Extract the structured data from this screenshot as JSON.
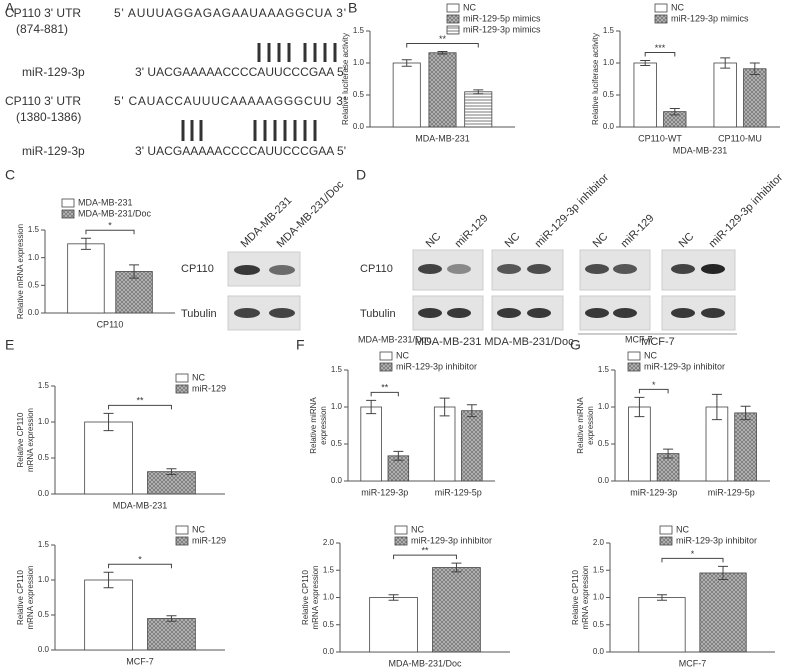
{
  "panel_labels": [
    "A",
    "B",
    "C",
    "D",
    "E",
    "F",
    "G"
  ],
  "sequences": [
    {
      "label": "CP110 3' UTR",
      "sublabel": "(874-881)",
      "seq": "5' AUUUAGGAGAGAAUAAAGGCUA 3'"
    },
    {
      "label": "miR-129-3p",
      "seq": "3' UACGAAAAACCCCAUUCCCGAA 5'"
    },
    {
      "label": "CP110 3' UTR",
      "sublabel": "(1380-1386)",
      "seq": "5' CAUACCAUUUCAAAAAGGGCUU 3'"
    },
    {
      "label": "miR-129-3p",
      "seq": "3' UACGAAAAACCCCAUUCCCGAA 5'"
    }
  ],
  "blot_c": {
    "lanes": [
      "MDA-MB-231",
      "MDA-MB-231/Doc"
    ],
    "rows": [
      "CP110",
      "Tubulin"
    ]
  },
  "blot_d": {
    "lanes": [
      "NC",
      "miR-129",
      "NC",
      "miR-129-3p inhibitor",
      "NC",
      "miR-129",
      "NC",
      "miR-129-3p inhibitor"
    ],
    "rows": [
      "CP110",
      "Tubulin"
    ],
    "groups": [
      "MDA-MB-231",
      "MDA-MB-231/Doc",
      "MCF-7"
    ]
  },
  "chart_data": [
    {
      "type": "bar",
      "ylabel": [
        "Relative luciferase activity"
      ],
      "categories": [
        "MDA-MB-231"
      ],
      "series": [
        {
          "name": "NC",
          "color": "#ffffff",
          "pattern": "none",
          "values": [
            1.0
          ],
          "errors": [
            0.05
          ]
        },
        {
          "name": "miR-129-5p mimics",
          "color": "#b8b8b8",
          "pattern": "crosshatch",
          "values": [
            1.16
          ],
          "errors": [
            0.02
          ]
        },
        {
          "name": "miR-129-3p mimics",
          "color": "#ffffff",
          "pattern": "hlines",
          "values": [
            0.55
          ],
          "errors": [
            0.03
          ]
        }
      ],
      "annotation": "**",
      "ylim": [
        0,
        1.5
      ],
      "yticks": [
        {
          "value": 0,
          "label": "0.0"
        },
        0.5,
        {
          "value": 1,
          "label": "1.0"
        },
        1.5
      ]
    },
    {
      "type": "bar",
      "ylabel": [
        "Relative luciferase activity"
      ],
      "categories": [
        "CP110-WT",
        "CP110-MU"
      ],
      "xlabel": "MDA-MB-231",
      "series": [
        {
          "name": "NC",
          "color": "#ffffff",
          "pattern": "none",
          "values": [
            1.0,
            1.0
          ],
          "errors": [
            0.04,
            0.08
          ]
        },
        {
          "name": "miR-129-3p  mimics",
          "color": "#b8b8b8",
          "pattern": "crosshatch",
          "values": [
            0.24,
            0.91
          ],
          "errors": [
            0.05,
            0.09
          ]
        }
      ],
      "annotation": "***",
      "ylim": [
        0,
        1.5
      ],
      "yticks": [
        {
          "value": 0,
          "label": "0.0"
        },
        0.5,
        {
          "value": 1,
          "label": "1.0"
        },
        1.5
      ]
    },
    {
      "type": "bar",
      "ylabel": [
        "Relative mRNA expression"
      ],
      "categories": [
        "CP110"
      ],
      "series": [
        {
          "name": "MDA-MB-231",
          "color": "#ffffff",
          "pattern": "none",
          "values": [
            1.25
          ],
          "errors": [
            0.1
          ]
        },
        {
          "name": "MDA-MB-231/Doc",
          "color": "#b8b8b8",
          "pattern": "crosshatch",
          "values": [
            0.75
          ],
          "errors": [
            0.12
          ]
        }
      ],
      "annotation": "*",
      "ylim": [
        0,
        1.5
      ],
      "yticks": [
        {
          "value": 0,
          "label": "0.0"
        },
        0.5,
        {
          "value": 1,
          "label": "1.0"
        },
        1.5
      ]
    },
    {
      "type": "bar",
      "ylabel": [
        "Relative CP110",
        "mRNA expression"
      ],
      "categories": [
        "MDA-MB-231"
      ],
      "series": [
        {
          "name": "NC",
          "color": "#ffffff",
          "pattern": "none",
          "values": [
            1.0
          ],
          "errors": [
            0.12
          ]
        },
        {
          "name": "miR-129",
          "color": "#b8b8b8",
          "pattern": "crosshatch",
          "values": [
            0.31
          ],
          "errors": [
            0.04
          ]
        }
      ],
      "annotation": "**",
      "ylim": [
        0,
        1.5
      ],
      "yticks": [
        {
          "value": 0,
          "label": "0.0"
        },
        0.5,
        {
          "value": 1,
          "label": "1.0"
        },
        1.5
      ]
    },
    {
      "type": "bar",
      "ylabel": [
        "Relative CP110",
        "mRNA expression"
      ],
      "categories": [
        "MCF-7"
      ],
      "series": [
        {
          "name": "NC",
          "color": "#ffffff",
          "pattern": "none",
          "values": [
            1.0
          ],
          "errors": [
            0.11
          ]
        },
        {
          "name": "miR-129",
          "color": "#b8b8b8",
          "pattern": "crosshatch",
          "values": [
            0.45
          ],
          "errors": [
            0.04
          ]
        }
      ],
      "annotation": "*",
      "ylim": [
        0,
        1.5
      ],
      "yticks": [
        {
          "value": 0,
          "label": "0.0"
        },
        0.5,
        {
          "value": 1,
          "label": "1.0"
        },
        1.5
      ]
    },
    {
      "type": "bar",
      "title": "MDA-MB-231/Doc",
      "ylabel": [
        "Relative miRNA",
        "expression"
      ],
      "categories": [
        "miR-129-3p",
        "miR-129-5p"
      ],
      "series": [
        {
          "name": "NC",
          "color": "#ffffff",
          "pattern": "none",
          "values": [
            1.0,
            1.0
          ],
          "errors": [
            0.09,
            0.12
          ]
        },
        {
          "name": "miR-129-3p inhibitor",
          "color": "#b8b8b8",
          "pattern": "crosshatch",
          "values": [
            0.34,
            0.95
          ],
          "errors": [
            0.06,
            0.08
          ]
        }
      ],
      "annotation": "**",
      "ylim": [
        0,
        1.5
      ],
      "yticks": [
        {
          "value": 0,
          "label": "0.0"
        },
        0.5,
        {
          "value": 1,
          "label": "1.0"
        },
        1.5
      ]
    },
    {
      "type": "bar",
      "ylabel": [
        "Relative CP110",
        "mRNA expression"
      ],
      "categories": [
        "MDA-MB-231/Doc"
      ],
      "series": [
        {
          "name": "NC",
          "color": "#ffffff",
          "pattern": "none",
          "values": [
            1.0
          ],
          "errors": [
            0.05
          ]
        },
        {
          "name": "miR-129-3p inhibitor",
          "color": "#b8b8b8",
          "pattern": "crosshatch",
          "values": [
            1.55
          ],
          "errors": [
            0.08
          ]
        }
      ],
      "annotation": "**",
      "ylim": [
        0,
        2
      ],
      "yticks": [
        {
          "value": 0,
          "label": "0.0"
        },
        0.5,
        {
          "value": 1,
          "label": "1.0"
        },
        1.5,
        {
          "value": 2,
          "label": "2.0"
        }
      ]
    },
    {
      "type": "bar",
      "title": "MCF-7",
      "ylabel": [
        "Relative miRNA",
        "expression"
      ],
      "categories": [
        "miR-129-3p",
        "miR-129-5p"
      ],
      "series": [
        {
          "name": "NC",
          "color": "#ffffff",
          "pattern": "none",
          "values": [
            1.0,
            1.0
          ],
          "errors": [
            0.13,
            0.17
          ]
        },
        {
          "name": "miR-129-3p inhibitor",
          "color": "#b8b8b8",
          "pattern": "crosshatch",
          "values": [
            0.37,
            0.92
          ],
          "errors": [
            0.06,
            0.09
          ]
        }
      ],
      "annotation": "*",
      "ylim": [
        0,
        1.5
      ],
      "yticks": [
        {
          "value": 0,
          "label": "0.0"
        },
        0.5,
        {
          "value": 1,
          "label": "1.0"
        },
        1.5
      ]
    },
    {
      "type": "bar",
      "ylabel": [
        "Relative CP110",
        "mRNA expression"
      ],
      "categories": [
        "MCF-7"
      ],
      "series": [
        {
          "name": "NC",
          "color": "#ffffff",
          "pattern": "none",
          "values": [
            1.0
          ],
          "errors": [
            0.05
          ]
        },
        {
          "name": "miR-129-3p inhibitor",
          "color": "#b8b8b8",
          "pattern": "crosshatch",
          "values": [
            1.45
          ],
          "errors": [
            0.12
          ]
        }
      ],
      "annotation": "*",
      "ylim": [
        0,
        2
      ],
      "yticks": [
        {
          "value": 0,
          "label": "0.0"
        },
        0.5,
        {
          "value": 1,
          "label": "1.0"
        },
        1.5,
        {
          "value": 2,
          "label": "2.0"
        }
      ]
    }
  ]
}
